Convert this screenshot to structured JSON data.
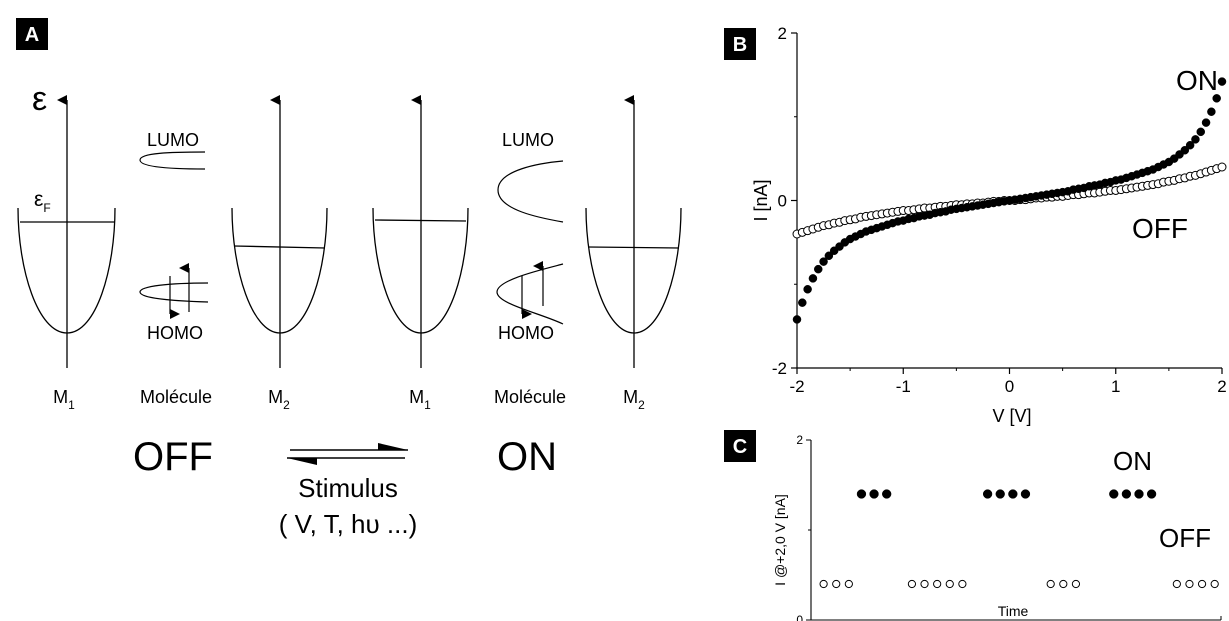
{
  "panels": {
    "a": {
      "letter": "A",
      "energy_symbol": "ε",
      "fermi_symbol": "ε",
      "fermi_subscript": "F",
      "electrode_name": "M",
      "electrode_subscripts": [
        "1",
        "2",
        "1",
        "2"
      ],
      "molecule_label": "Molécule",
      "lumo_label": "LUMO",
      "homo_label": "HOMO",
      "state_off": "OFF",
      "state_on": "ON",
      "stimulus_label": "Stimulus",
      "stimulus_examples": "( V, T, hυ ...)"
    },
    "b": {
      "letter": "B"
    },
    "c": {
      "letter": "C"
    }
  },
  "chart_data": [
    {
      "type": "scatter",
      "panel": "B",
      "xlabel": "V [V]",
      "ylabel": "I [nA]",
      "xlim": [
        -2,
        2
      ],
      "ylim": [
        -2,
        2
      ],
      "xticks": [
        "-2",
        "-1",
        "0",
        "1",
        "2"
      ],
      "yticks": [
        "-2",
        "0",
        "2"
      ],
      "legend_placement": "inline labels right",
      "series": [
        {
          "name": "ON",
          "marker": "filled-circle",
          "x": [
            -2.0,
            -1.95,
            -1.9,
            -1.85,
            -1.8,
            -1.75,
            -1.7,
            -1.65,
            -1.6,
            -1.55,
            -1.5,
            -1.45,
            -1.4,
            -1.35,
            -1.3,
            -1.25,
            -1.2,
            -1.15,
            -1.1,
            -1.05,
            -1.0,
            -0.95,
            -0.9,
            -0.85,
            -0.8,
            -0.75,
            -0.7,
            -0.65,
            -0.6,
            -0.55,
            -0.5,
            -0.45,
            -0.4,
            -0.35,
            -0.3,
            -0.25,
            -0.2,
            -0.15,
            -0.1,
            -0.05,
            0.0,
            0.05,
            0.1,
            0.15,
            0.2,
            0.25,
            0.3,
            0.35,
            0.4,
            0.45,
            0.5,
            0.55,
            0.6,
            0.65,
            0.7,
            0.75,
            0.8,
            0.85,
            0.9,
            0.95,
            1.0,
            1.05,
            1.1,
            1.15,
            1.2,
            1.25,
            1.3,
            1.35,
            1.4,
            1.45,
            1.5,
            1.55,
            1.6,
            1.65,
            1.7,
            1.75,
            1.8,
            1.85,
            1.9,
            1.95,
            2.0
          ],
          "y": [
            -1.42,
            -1.22,
            -1.06,
            -0.93,
            -0.82,
            -0.73,
            -0.66,
            -0.6,
            -0.55,
            -0.5,
            -0.46,
            -0.43,
            -0.4,
            -0.37,
            -0.35,
            -0.33,
            -0.31,
            -0.29,
            -0.27,
            -0.25,
            -0.24,
            -0.22,
            -0.21,
            -0.19,
            -0.18,
            -0.17,
            -0.15,
            -0.14,
            -0.13,
            -0.11,
            -0.1,
            -0.09,
            -0.08,
            -0.07,
            -0.06,
            -0.05,
            -0.04,
            -0.03,
            -0.02,
            -0.01,
            0.0,
            0.01,
            0.02,
            0.03,
            0.04,
            0.05,
            0.06,
            0.07,
            0.08,
            0.09,
            0.1,
            0.11,
            0.13,
            0.14,
            0.15,
            0.17,
            0.18,
            0.19,
            0.21,
            0.22,
            0.24,
            0.25,
            0.27,
            0.29,
            0.31,
            0.33,
            0.35,
            0.37,
            0.4,
            0.43,
            0.46,
            0.5,
            0.55,
            0.6,
            0.66,
            0.73,
            0.82,
            0.93,
            1.06,
            1.22,
            1.42
          ]
        },
        {
          "name": "OFF",
          "marker": "open-circle",
          "x": [
            -2.0,
            -1.95,
            -1.9,
            -1.85,
            -1.8,
            -1.75,
            -1.7,
            -1.65,
            -1.6,
            -1.55,
            -1.5,
            -1.45,
            -1.4,
            -1.35,
            -1.3,
            -1.25,
            -1.2,
            -1.15,
            -1.1,
            -1.05,
            -1.0,
            -0.95,
            -0.9,
            -0.85,
            -0.8,
            -0.75,
            -0.7,
            -0.65,
            -0.6,
            -0.55,
            -0.5,
            -0.45,
            -0.4,
            -0.35,
            -0.3,
            -0.25,
            -0.2,
            -0.15,
            -0.1,
            -0.05,
            0.0,
            0.05,
            0.1,
            0.15,
            0.2,
            0.25,
            0.3,
            0.35,
            0.4,
            0.45,
            0.5,
            0.55,
            0.6,
            0.65,
            0.7,
            0.75,
            0.8,
            0.85,
            0.9,
            0.95,
            1.0,
            1.05,
            1.1,
            1.15,
            1.2,
            1.25,
            1.3,
            1.35,
            1.4,
            1.45,
            1.5,
            1.55,
            1.6,
            1.65,
            1.7,
            1.75,
            1.8,
            1.85,
            1.9,
            1.95,
            2.0
          ],
          "y": [
            -0.4,
            -0.38,
            -0.36,
            -0.34,
            -0.32,
            -0.3,
            -0.29,
            -0.27,
            -0.26,
            -0.24,
            -0.23,
            -0.22,
            -0.2,
            -0.19,
            -0.18,
            -0.17,
            -0.16,
            -0.15,
            -0.14,
            -0.13,
            -0.12,
            -0.12,
            -0.11,
            -0.1,
            -0.09,
            -0.09,
            -0.08,
            -0.07,
            -0.07,
            -0.06,
            -0.05,
            -0.05,
            -0.04,
            -0.04,
            -0.03,
            -0.03,
            -0.02,
            -0.01,
            -0.01,
            -0.0,
            0.0,
            0.0,
            0.01,
            0.01,
            0.02,
            0.03,
            0.03,
            0.04,
            0.04,
            0.05,
            0.05,
            0.06,
            0.07,
            0.07,
            0.08,
            0.09,
            0.09,
            0.1,
            0.11,
            0.12,
            0.12,
            0.13,
            0.14,
            0.15,
            0.16,
            0.17,
            0.18,
            0.19,
            0.2,
            0.22,
            0.23,
            0.24,
            0.26,
            0.27,
            0.29,
            0.3,
            0.32,
            0.34,
            0.36,
            0.38,
            0.4
          ]
        }
      ]
    },
    {
      "type": "scatter",
      "panel": "C",
      "xlabel": "Time",
      "ylabel": "I @+2,0 V [nA]",
      "ylim": [
        0,
        2
      ],
      "yticks": [
        "0",
        "2"
      ],
      "legend_placement": "inline labels right",
      "series": [
        {
          "name": "ON",
          "marker": "filled-circle",
          "x": [
            4,
            5,
            6,
            14,
            15,
            16,
            17,
            24,
            25,
            26,
            27
          ],
          "y": [
            1.4,
            1.4,
            1.4,
            1.4,
            1.4,
            1.4,
            1.4,
            1.4,
            1.4,
            1.4,
            1.4
          ]
        },
        {
          "name": "OFF",
          "marker": "open-circle",
          "x": [
            1,
            2,
            3,
            8,
            9,
            10,
            11,
            12,
            19,
            20,
            21,
            29,
            30,
            31,
            32
          ],
          "y": [
            0.4,
            0.4,
            0.4,
            0.4,
            0.4,
            0.4,
            0.4,
            0.4,
            0.4,
            0.4,
            0.4,
            0.4,
            0.4,
            0.4,
            0.4
          ]
        }
      ],
      "xlim": [
        0,
        32.5
      ]
    }
  ]
}
